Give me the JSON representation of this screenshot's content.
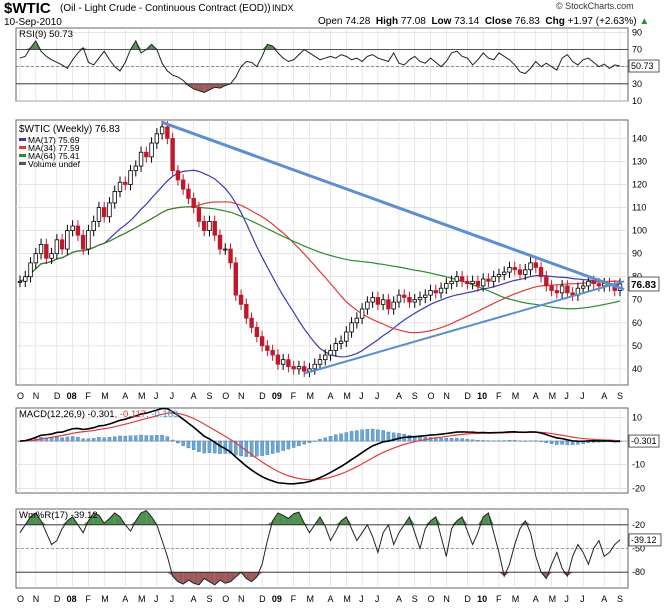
{
  "header": {
    "symbol": "$WTIC",
    "description": "(Oil - Light Crude - Continuous Contract (EOD))",
    "exchange": "INDX",
    "date": "10-Sep-2010",
    "credit": "© StockCharts.com",
    "open_label": "Open",
    "open": "74.28",
    "high_label": "High",
    "high": "77.08",
    "low_label": "Low",
    "low": "73.14",
    "close_label": "Close",
    "close": "76.83",
    "chg_label": "Chg",
    "chg": "+1.97 (+2.63%)",
    "chg_arrow": "▲"
  },
  "chart_data": [
    {
      "type": "line",
      "panel": "rsi",
      "title": "RSI(9) 50.73",
      "current": "50.73",
      "ylim": [
        10,
        95
      ],
      "yticks": [
        90,
        70,
        50,
        30,
        10
      ],
      "levels": [
        70,
        30
      ],
      "series": [
        {
          "values": [
            60,
            62,
            72,
            80,
            68,
            62,
            58,
            55,
            52,
            48,
            58,
            66,
            72,
            55,
            52,
            60,
            68,
            58,
            50,
            45,
            55,
            70,
            80,
            66,
            70,
            76,
            70,
            54,
            45,
            40,
            38,
            34,
            28,
            24,
            22,
            20,
            23,
            26,
            25,
            28,
            30,
            38,
            50,
            56,
            55,
            50,
            62,
            76,
            74,
            66,
            60,
            56,
            58,
            64,
            70,
            66,
            62,
            58,
            60,
            62,
            60,
            64,
            62,
            58,
            60,
            56,
            62,
            64,
            60,
            58,
            56,
            66,
            54,
            52,
            58,
            62,
            56,
            54,
            60,
            55,
            50,
            56,
            66,
            68,
            62,
            60,
            52,
            58,
            66,
            60,
            58,
            66,
            62,
            58,
            52,
            44,
            42,
            48,
            56,
            50,
            54,
            50,
            46,
            60,
            64,
            56,
            52,
            58,
            60,
            55,
            50,
            53,
            48,
            52,
            50.73
          ]
        }
      ]
    },
    {
      "type": "line",
      "panel": "price",
      "title": "$WTIC (Weekly) 76.83",
      "current": "76.83",
      "xlabels": [
        "O",
        "N",
        "D",
        "08",
        "F",
        "M",
        "A",
        "M",
        "J",
        "J",
        "A",
        "S",
        "O",
        "N",
        "D",
        "09",
        "F",
        "M",
        "A",
        "M",
        "J",
        "J",
        "A",
        "S",
        "O",
        "N",
        "D",
        "10",
        "F",
        "M",
        "A",
        "M",
        "J",
        "J",
        "A",
        "S"
      ],
      "ylim": [
        33,
        148
      ],
      "yticks": [
        140,
        130,
        120,
        110,
        100,
        90,
        80,
        70,
        60,
        50,
        40
      ],
      "price": [
        78,
        80,
        86,
        90,
        94,
        88,
        90,
        96,
        92,
        100,
        102,
        98,
        92,
        100,
        104,
        110,
        106,
        112,
        117,
        121,
        120,
        126,
        128,
        134,
        132,
        138,
        142,
        145,
        140,
        126,
        122,
        118,
        114,
        110,
        104,
        100,
        104,
        98,
        92,
        92,
        86,
        72,
        68,
        62,
        58,
        54,
        50,
        48,
        46,
        42,
        44,
        41,
        40,
        41,
        39,
        40,
        42,
        44,
        46,
        48,
        51,
        52,
        56,
        60,
        62,
        66,
        69,
        71,
        68,
        70,
        66,
        69,
        72,
        71,
        69,
        70,
        71,
        72,
        74,
        73,
        75,
        77,
        78,
        80,
        78,
        77,
        78,
        76,
        79,
        78,
        80,
        81,
        82,
        84,
        83,
        81,
        83,
        86,
        84,
        80,
        76,
        74,
        73,
        76,
        73,
        72,
        75,
        76,
        78,
        77,
        76,
        77,
        76,
        74,
        76.83
      ],
      "series": [
        {
          "name": "MA(17) 75.69",
          "color": "#3a3ab8"
        },
        {
          "name": "MA(34) 77.59",
          "color": "#e03a3a"
        },
        {
          "name": "MA(64) 75.41",
          "color": "#2e8b2e"
        },
        {
          "name": "Volume undef",
          "color": "#555555"
        }
      ]
    },
    {
      "type": "line",
      "panel": "macd",
      "title": "MACD(12,26,9) -0.301, -0.117, -0.183",
      "title_main": "MACD(12,26,9) -0.301",
      "title_signal": ", -0.117",
      "title_hist": ", -0.183",
      "current": "-0.301",
      "ylim": [
        -22,
        14
      ],
      "yticks": [
        10,
        0,
        -10,
        -20
      ]
    },
    {
      "type": "line",
      "panel": "wmr",
      "title": "Wm%R(17) -39.12",
      "current": "-39.12",
      "ylim": [
        -100,
        0
      ],
      "yticks": [
        -20,
        -50,
        -80
      ],
      "levels": [
        -20,
        -80
      ],
      "series": [
        {
          "values": [
            -30,
            -20,
            -10,
            -5,
            -15,
            -30,
            -45,
            -40,
            -25,
            -15,
            -10,
            -20,
            -30,
            -15,
            -5,
            -8,
            -18,
            -12,
            -5,
            -10,
            -20,
            -28,
            -15,
            -5,
            -2,
            -10,
            -20,
            -40,
            -60,
            -85,
            -92,
            -95,
            -90,
            -94,
            -96,
            -88,
            -92,
            -96,
            -90,
            -94,
            -92,
            -86,
            -80,
            -88,
            -92,
            -86,
            -70,
            -40,
            -15,
            -5,
            -8,
            -12,
            -6,
            -4,
            -18,
            -30,
            -20,
            -10,
            -22,
            -40,
            -28,
            -15,
            -10,
            -25,
            -40,
            -30,
            -20,
            -35,
            -55,
            -30,
            -20,
            -45,
            -30,
            -20,
            -10,
            -30,
            -50,
            -25,
            -15,
            -10,
            -35,
            -60,
            -25,
            -15,
            -10,
            -28,
            -45,
            -30,
            -10,
            -5,
            -30,
            -55,
            -85,
            -70,
            -45,
            -25,
            -15,
            -30,
            -60,
            -80,
            -88,
            -70,
            -55,
            -75,
            -85,
            -60,
            -45,
            -55,
            -70,
            -50,
            -40,
            -60,
            -55,
            -45,
            -39.12
          ]
        }
      ]
    }
  ]
}
